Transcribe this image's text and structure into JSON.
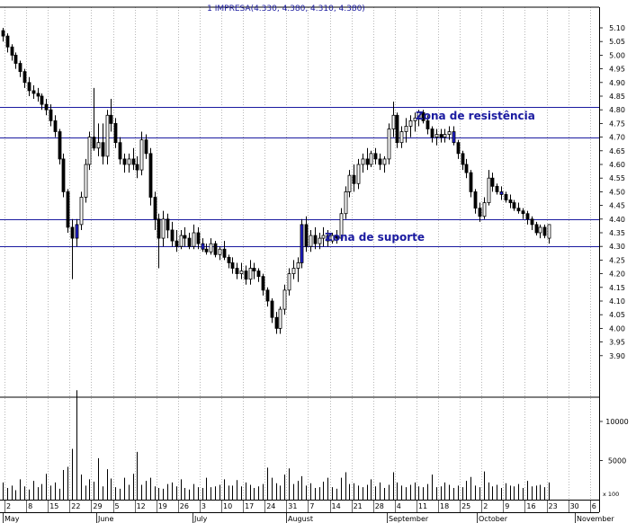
{
  "header": {
    "label": "1 IMPRESA(4.330, 4.380, 4.310, 4.380)"
  },
  "colors": {
    "axis": "#000000",
    "grid": "#888888",
    "hline": "#1a1aa0",
    "text_blue": "#1a1aa0",
    "up_body": "#ffffff",
    "down_body": "#000000",
    "blue_body": "#1f1fd0",
    "volume": "#000000"
  },
  "chart_data": {
    "type": "candlestick",
    "title": "1 IMPRESA(4.330, 4.380, 4.310, 4.380)",
    "price_axis": {
      "ylim": [
        3.85,
        5.15
      ],
      "ticks": [
        "5.10",
        "5.05",
        "5.00",
        "4.95",
        "4.90",
        "4.85",
        "4.80",
        "4.75",
        "4.70",
        "4.65",
        "4.60",
        "4.55",
        "4.50",
        "4.45",
        "4.40",
        "4.35",
        "4.30",
        "4.25",
        "4.20",
        "4.15",
        "4.10",
        "4.05",
        "4.00",
        "3.95",
        "3.90"
      ]
    },
    "volume_axis": {
      "ylim": [
        0,
        14000
      ],
      "ticks": [
        "10000",
        "5000"
      ],
      "scale_label": "x 100"
    },
    "x_tick_labels": [
      "2",
      "8",
      "15",
      "22",
      "29",
      "5",
      "12",
      "19",
      "26",
      "3",
      "10",
      "17",
      "24",
      "31",
      "7",
      "14",
      "21",
      "28",
      "4",
      "11",
      "18",
      "25",
      "2",
      "9",
      "16",
      "23",
      "30",
      "6"
    ],
    "month_labels": [
      "May",
      "June",
      "July",
      "August",
      "September",
      "October",
      "November"
    ],
    "horizontal_lines": [
      4.81,
      4.7,
      4.4,
      4.3
    ],
    "annotations": [
      "Zona de resistência",
      "Zona de suporte"
    ],
    "last_bar": {
      "open": 4.33,
      "high": 4.38,
      "low": 4.31,
      "close": 4.38
    },
    "candles": [
      [
        5.09,
        5.1,
        5.05,
        5.07
      ],
      [
        5.07,
        5.08,
        5.01,
        5.03
      ],
      [
        5.03,
        5.04,
        4.98,
        5.0
      ],
      [
        5.0,
        5.01,
        4.95,
        4.97
      ],
      [
        4.97,
        4.98,
        4.92,
        4.94
      ],
      [
        4.94,
        4.95,
        4.88,
        4.9
      ],
      [
        4.9,
        4.92,
        4.85,
        4.87
      ],
      [
        4.87,
        4.89,
        4.84,
        4.86
      ],
      [
        4.86,
        4.88,
        4.83,
        4.85
      ],
      [
        4.85,
        4.86,
        4.8,
        4.82
      ],
      [
        4.82,
        4.84,
        4.78,
        4.8
      ],
      [
        4.8,
        4.82,
        4.74,
        4.76
      ],
      [
        4.76,
        4.78,
        4.7,
        4.72
      ],
      [
        4.72,
        4.73,
        4.6,
        4.62
      ],
      [
        4.62,
        4.64,
        4.48,
        4.5
      ],
      [
        4.5,
        4.51,
        4.35,
        4.37
      ],
      [
        4.37,
        4.4,
        4.18,
        4.33
      ],
      [
        4.33,
        4.4,
        4.3,
        4.38
      ],
      [
        4.38,
        4.5,
        4.36,
        4.48
      ],
      [
        4.48,
        4.62,
        4.46,
        4.6
      ],
      [
        4.6,
        4.72,
        4.58,
        4.7
      ],
      [
        4.7,
        4.88,
        4.65,
        4.66
      ],
      [
        4.66,
        4.75,
        4.63,
        4.68
      ],
      [
        4.68,
        4.75,
        4.6,
        4.63
      ],
      [
        4.63,
        4.8,
        4.6,
        4.78
      ],
      [
        4.78,
        4.84,
        4.72,
        4.75
      ],
      [
        4.75,
        4.77,
        4.66,
        4.68
      ],
      [
        4.68,
        4.7,
        4.6,
        4.62
      ],
      [
        4.62,
        4.64,
        4.57,
        4.6
      ],
      [
        4.6,
        4.64,
        4.57,
        4.62
      ],
      [
        4.62,
        4.66,
        4.58,
        4.6
      ],
      [
        4.6,
        4.63,
        4.55,
        4.58
      ],
      [
        4.58,
        4.72,
        4.56,
        4.69
      ],
      [
        4.69,
        4.71,
        4.62,
        4.64
      ],
      [
        4.64,
        4.66,
        4.45,
        4.48
      ],
      [
        4.48,
        4.5,
        4.36,
        4.4
      ],
      [
        4.4,
        4.42,
        4.22,
        4.33
      ],
      [
        4.33,
        4.43,
        4.3,
        4.4
      ],
      [
        4.4,
        4.42,
        4.33,
        4.36
      ],
      [
        4.36,
        4.39,
        4.3,
        4.32
      ],
      [
        4.32,
        4.36,
        4.28,
        4.3
      ],
      [
        4.3,
        4.36,
        4.29,
        4.34
      ],
      [
        4.34,
        4.37,
        4.3,
        4.33
      ],
      [
        4.33,
        4.35,
        4.29,
        4.3
      ],
      [
        4.3,
        4.38,
        4.29,
        4.35
      ],
      [
        4.35,
        4.37,
        4.29,
        4.31
      ],
      [
        4.31,
        4.33,
        4.28,
        4.29
      ],
      [
        4.29,
        4.31,
        4.27,
        4.28
      ],
      [
        4.28,
        4.33,
        4.27,
        4.31
      ],
      [
        4.31,
        4.32,
        4.26,
        4.27
      ],
      [
        4.27,
        4.3,
        4.25,
        4.29
      ],
      [
        4.29,
        4.32,
        4.25,
        4.26
      ],
      [
        4.26,
        4.27,
        4.22,
        4.24
      ],
      [
        4.24,
        4.26,
        4.2,
        4.22
      ],
      [
        4.22,
        4.24,
        4.18,
        4.2
      ],
      [
        4.2,
        4.24,
        4.18,
        4.21
      ],
      [
        4.21,
        4.23,
        4.16,
        4.18
      ],
      [
        4.18,
        4.25,
        4.16,
        4.22
      ],
      [
        4.22,
        4.24,
        4.18,
        4.21
      ],
      [
        4.21,
        4.22,
        4.17,
        4.19
      ],
      [
        4.19,
        4.2,
        4.12,
        4.14
      ],
      [
        4.14,
        4.15,
        4.08,
        4.1
      ],
      [
        4.1,
        4.11,
        4.02,
        4.04
      ],
      [
        4.04,
        4.06,
        3.98,
        4.0
      ],
      [
        4.0,
        4.08,
        3.98,
        4.07
      ],
      [
        4.07,
        4.16,
        4.05,
        4.14
      ],
      [
        4.14,
        4.22,
        4.12,
        4.2
      ],
      [
        4.2,
        4.25,
        4.18,
        4.22
      ],
      [
        4.22,
        4.26,
        4.17,
        4.24
      ],
      [
        4.24,
        4.4,
        4.22,
        4.38
      ],
      [
        4.38,
        4.41,
        4.28,
        4.3
      ],
      [
        4.3,
        4.36,
        4.28,
        4.34
      ],
      [
        4.34,
        4.37,
        4.29,
        4.31
      ],
      [
        4.31,
        4.35,
        4.29,
        4.33
      ],
      [
        4.33,
        4.37,
        4.3,
        4.34
      ],
      [
        4.34,
        4.36,
        4.3,
        4.32
      ],
      [
        4.32,
        4.35,
        4.31,
        4.34
      ],
      [
        4.34,
        4.36,
        4.31,
        4.33
      ],
      [
        4.33,
        4.44,
        4.32,
        4.42
      ],
      [
        4.42,
        4.52,
        4.4,
        4.5
      ],
      [
        4.5,
        4.58,
        4.48,
        4.56
      ],
      [
        4.56,
        4.6,
        4.5,
        4.53
      ],
      [
        4.53,
        4.62,
        4.51,
        4.6
      ],
      [
        4.6,
        4.64,
        4.57,
        4.62
      ],
      [
        4.62,
        4.66,
        4.58,
        4.6
      ],
      [
        4.6,
        4.65,
        4.59,
        4.64
      ],
      [
        4.64,
        4.66,
        4.6,
        4.62
      ],
      [
        4.62,
        4.64,
        4.58,
        4.6
      ],
      [
        4.6,
        4.63,
        4.57,
        4.62
      ],
      [
        4.62,
        4.75,
        4.6,
        4.73
      ],
      [
        4.73,
        4.83,
        4.7,
        4.78
      ],
      [
        4.78,
        4.79,
        4.66,
        4.68
      ],
      [
        4.68,
        4.74,
        4.66,
        4.72
      ],
      [
        4.72,
        4.77,
        4.68,
        4.74
      ],
      [
        4.74,
        4.78,
        4.7,
        4.76
      ],
      [
        4.76,
        4.79,
        4.72,
        4.77
      ],
      [
        4.77,
        4.8,
        4.74,
        4.79
      ],
      [
        4.79,
        4.8,
        4.75,
        4.76
      ],
      [
        4.76,
        4.78,
        4.71,
        4.73
      ],
      [
        4.73,
        4.74,
        4.68,
        4.7
      ],
      [
        4.7,
        4.73,
        4.67,
        4.71
      ],
      [
        4.71,
        4.73,
        4.68,
        4.7
      ],
      [
        4.7,
        4.73,
        4.68,
        4.71
      ],
      [
        4.71,
        4.74,
        4.69,
        4.72
      ],
      [
        4.72,
        4.74,
        4.67,
        4.68
      ],
      [
        4.68,
        4.69,
        4.62,
        4.64
      ],
      [
        4.64,
        4.65,
        4.58,
        4.6
      ],
      [
        4.6,
        4.62,
        4.55,
        4.57
      ],
      [
        4.57,
        4.58,
        4.48,
        4.5
      ],
      [
        4.5,
        4.51,
        4.42,
        4.44
      ],
      [
        4.44,
        4.46,
        4.39,
        4.41
      ],
      [
        4.41,
        4.48,
        4.4,
        4.46
      ],
      [
        4.46,
        4.58,
        4.45,
        4.55
      ],
      [
        4.55,
        4.57,
        4.5,
        4.52
      ],
      [
        4.52,
        4.53,
        4.49,
        4.5
      ],
      [
        4.5,
        4.52,
        4.47,
        4.49
      ],
      [
        4.49,
        4.5,
        4.46,
        4.47
      ],
      [
        4.47,
        4.49,
        4.44,
        4.46
      ],
      [
        4.46,
        4.47,
        4.43,
        4.44
      ],
      [
        4.44,
        4.46,
        4.42,
        4.43
      ],
      [
        4.43,
        4.44,
        4.4,
        4.42
      ],
      [
        4.42,
        4.43,
        4.38,
        4.4
      ],
      [
        4.4,
        4.41,
        4.36,
        4.38
      ],
      [
        4.38,
        4.39,
        4.34,
        4.35
      ],
      [
        4.35,
        4.38,
        4.33,
        4.37
      ],
      [
        4.37,
        4.38,
        4.33,
        4.34
      ],
      [
        4.33,
        4.38,
        4.31,
        4.38
      ]
    ],
    "volume": [
      2200,
      1500,
      1800,
      1200,
      2600,
      1700,
      1300,
      2400,
      1600,
      2000,
      3300,
      1800,
      2200,
      1400,
      3800,
      4200,
      6500,
      14000,
      3200,
      1800,
      2600,
      2300,
      5300,
      1700,
      3900,
      2700,
      1600,
      1400,
      2800,
      1900,
      3300,
      6100,
      1900,
      2400,
      2800,
      1700,
      1500,
      1400,
      2000,
      2200,
      1700,
      2600,
      1500,
      1300,
      2000,
      1600,
      1500,
      2800,
      1600,
      1700,
      1900,
      2600,
      1800,
      1800,
      2500,
      1700,
      2200,
      1900,
      1500,
      1700,
      2000,
      4100,
      2800,
      2100,
      1800,
      3200,
      4000,
      2000,
      2400,
      3000,
      1800,
      2100,
      1500,
      1600,
      2300,
      2800,
      1600,
      1400,
      2800,
      3500,
      2000,
      2100,
      1800,
      1600,
      1900,
      2600,
      1700,
      2200,
      1500,
      1900,
      3500,
      2200,
      1800,
      1600,
      1900,
      2200,
      1700,
      1600,
      2000,
      3200,
      1600,
      1700,
      2200,
      1900,
      1500,
      1800,
      1600,
      2400,
      2900,
      1800,
      1600,
      3600,
      2200,
      1700,
      1900,
      1500,
      2100,
      1800,
      1700,
      2000,
      1500,
      2400,
      1700,
      1800,
      1900,
      1600,
      2200
    ]
  }
}
